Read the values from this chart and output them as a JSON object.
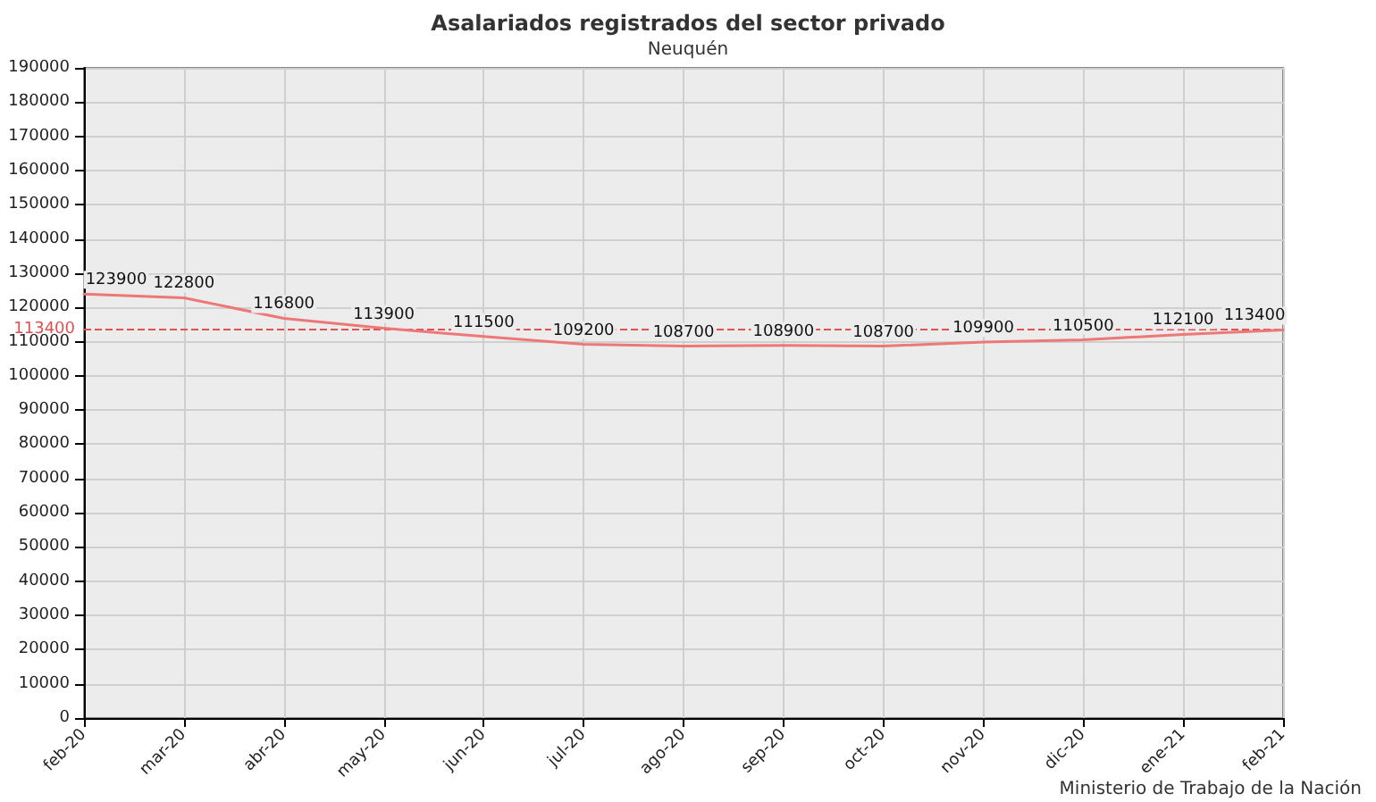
{
  "chart_data": {
    "type": "line",
    "title": "Asalariados registrados del sector privado",
    "subtitle": "Neuquén",
    "categories": [
      "feb-20",
      "mar-20",
      "abr-20",
      "may-20",
      "jun-20",
      "jul-20",
      "ago-20",
      "sep-20",
      "oct-20",
      "nov-20",
      "dic-20",
      "ene-21",
      "feb-21"
    ],
    "series": [
      {
        "color": "#ee7777",
        "values": [
          123900,
          122800,
          116800,
          113900,
          111500,
          109200,
          108700,
          108900,
          108700,
          109900,
          110500,
          112100,
          113400
        ]
      }
    ],
    "ylim": [
      0,
      190000
    ],
    "yticks": [
      0,
      10000,
      20000,
      30000,
      40000,
      50000,
      60000,
      70000,
      80000,
      90000,
      100000,
      110000,
      120000,
      130000,
      140000,
      150000,
      160000,
      170000,
      180000,
      190000
    ],
    "grid": true,
    "data_labels": true,
    "marker": "none",
    "line_style": "solid",
    "ref_lines": [
      {
        "axis": "y",
        "value": 113400,
        "label": "113400",
        "color": "#e05050",
        "line_style": "dashed"
      }
    ],
    "annotations": [
      "Ministerio de Trabajo de la Nación"
    ]
  }
}
